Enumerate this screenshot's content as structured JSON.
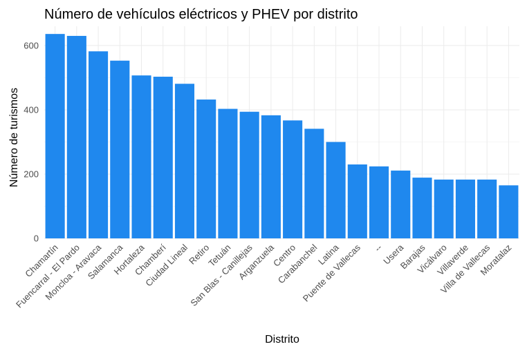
{
  "chart_data": {
    "type": "bar",
    "title": "Número de vehículos eléctricos y PHEV por distrito",
    "xlabel": "Distrito",
    "ylabel": "Número de turismos",
    "categories": [
      "Chamartín",
      "Fuencarral - El Pardo",
      "Moncloa - Aravaca",
      "Salamanca",
      "Hortaleza",
      "Chamberí",
      "Ciudad Lineal",
      "Retiro",
      "Tetuán",
      "San Blas - Canillejas",
      "Arganzuela",
      "Centro",
      "Carabanchel",
      "Latina",
      "Puente de Vallecas",
      "--",
      "Usera",
      "Barajas",
      "Vicálvaro",
      "Villaverde",
      "Villa de Vallecas",
      "Moratalaz"
    ],
    "values": [
      636,
      630,
      582,
      553,
      507,
      503,
      481,
      432,
      403,
      394,
      383,
      367,
      341,
      300,
      230,
      224,
      211,
      189,
      183,
      183,
      183,
      165
    ],
    "ylim": [
      0,
      660
    ],
    "yticks": [
      0,
      200,
      400,
      600
    ],
    "bar_color": "#1f88ee",
    "grid": true
  }
}
